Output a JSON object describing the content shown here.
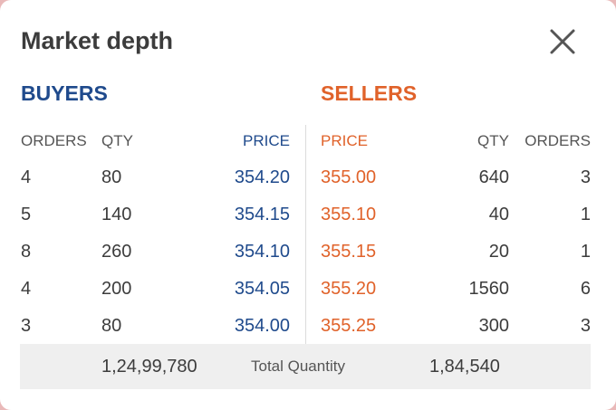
{
  "dialog": {
    "title": "Market depth",
    "buyers_label": "BUYERS",
    "sellers_label": "SELLERS"
  },
  "colors": {
    "buy": "#1f4a8c",
    "sell": "#e0622a",
    "text": "#3c3c3c"
  },
  "headers": {
    "buy_orders": "ORDERS",
    "buy_qty": "QTY",
    "buy_price": "PRICE",
    "sell_price": "PRICE",
    "sell_qty": "QTY",
    "sell_orders": "ORDERS"
  },
  "rows": [
    {
      "buy_orders": "4",
      "buy_qty": "80",
      "buy_price": "354.20",
      "sell_price": "355.00",
      "sell_qty": "640",
      "sell_orders": "3"
    },
    {
      "buy_orders": "5",
      "buy_qty": "140",
      "buy_price": "354.15",
      "sell_price": "355.10",
      "sell_qty": "40",
      "sell_orders": "1"
    },
    {
      "buy_orders": "8",
      "buy_qty": "260",
      "buy_price": "354.10",
      "sell_price": "355.15",
      "sell_qty": "20",
      "sell_orders": "1"
    },
    {
      "buy_orders": "4",
      "buy_qty": "200",
      "buy_price": "354.05",
      "sell_price": "355.20",
      "sell_qty": "1560",
      "sell_orders": "6"
    },
    {
      "buy_orders": "3",
      "buy_qty": "80",
      "buy_price": "354.00",
      "sell_price": "355.25",
      "sell_qty": "300",
      "sell_orders": "3"
    }
  ],
  "totals": {
    "buy_total": "1,24,99,780",
    "label": "Total Quantity",
    "sell_total": "1,84,540"
  },
  "icons": {
    "close": "close-icon"
  }
}
